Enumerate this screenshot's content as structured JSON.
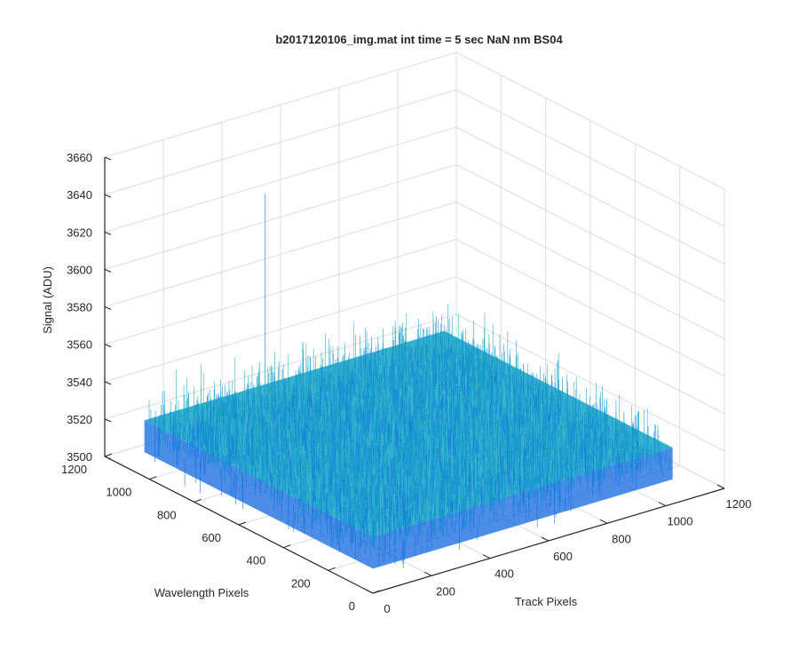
{
  "chart_data": {
    "type": "surface",
    "title": "b2017120106_img.mat int time = 5 sec  NaN nm BS04",
    "xlabel": "Track Pixels",
    "ylabel": "Wavelength Pixels",
    "zlabel": "Signal (ADU)",
    "xlim": [
      0,
      1200
    ],
    "ylim": [
      0,
      1200
    ],
    "zlim": [
      3500,
      3660
    ],
    "x_ticks": [
      0,
      200,
      400,
      600,
      800,
      1000,
      1200
    ],
    "y_ticks": [
      0,
      200,
      400,
      600,
      800,
      1000,
      1200
    ],
    "z_ticks": [
      3500,
      3520,
      3540,
      3560,
      3580,
      3600,
      3620,
      3640,
      3660
    ],
    "x_extent": [
      1,
      1024
    ],
    "y_extent": [
      1,
      1024
    ],
    "z_mean": 3530,
    "z_spread": [
      3505,
      3600
    ],
    "z_peak": 3636,
    "grid": true,
    "colormap": "parula",
    "colors": {
      "low": "#1067e0",
      "mid": "#14a3c8",
      "high": "#a8d860",
      "grid": "#dcdcdc",
      "axis": "#262626"
    }
  }
}
